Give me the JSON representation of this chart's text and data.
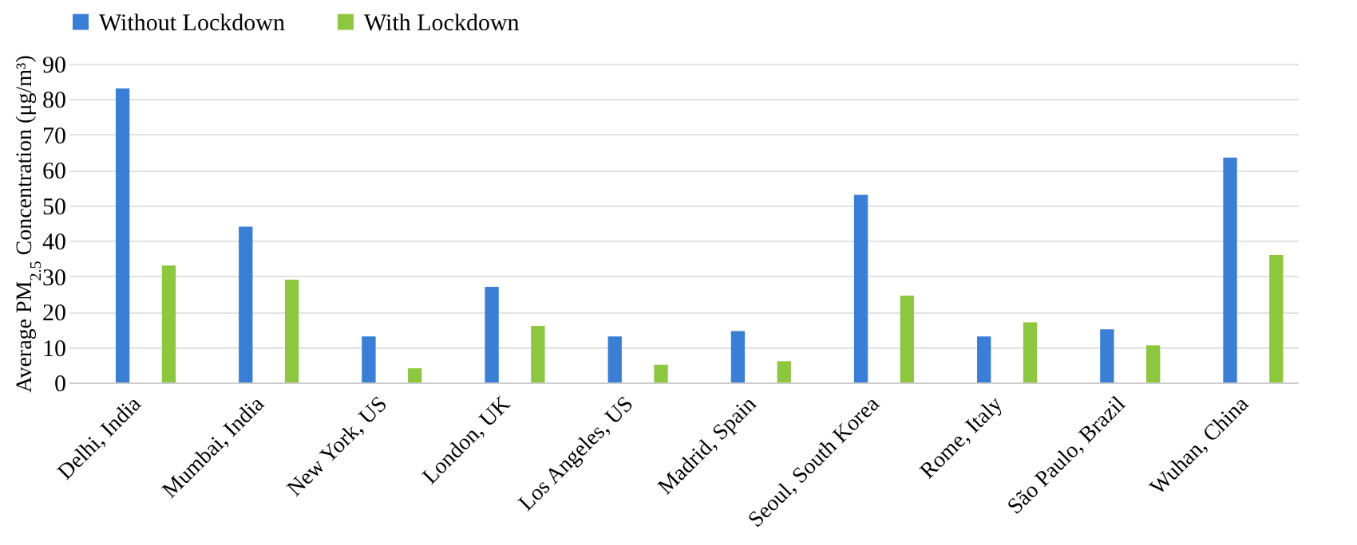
{
  "chart_data": {
    "type": "bar",
    "ylabel": "Average PM$_{2.5}$ Concentration (μg/m³)",
    "categories": [
      "Delhi, India",
      "Mumbai, India",
      "New York, US",
      "London, UK",
      "Los Angeles, US",
      "Madrid, Spain",
      "Seoul, South Korea",
      "Rome, Italy",
      "São Paulo, Brazil",
      "Wuhan, China"
    ],
    "series": [
      {
        "name": "Without Lockdown",
        "color": "#3a7fd5",
        "values": [
          83,
          44,
          13,
          27,
          13,
          14.5,
          53,
          13,
          15,
          63.5
        ]
      },
      {
        "name": "With Lockdown",
        "color": "#8dc63f",
        "values": [
          33,
          29,
          4,
          16,
          5,
          6,
          24.5,
          17,
          10.5,
          36
        ]
      }
    ],
    "ylim": [
      0,
      90
    ],
    "yticks": [
      0,
      10,
      20,
      30,
      40,
      50,
      60,
      70,
      80,
      90
    ],
    "grid": true,
    "legend": "top"
  }
}
